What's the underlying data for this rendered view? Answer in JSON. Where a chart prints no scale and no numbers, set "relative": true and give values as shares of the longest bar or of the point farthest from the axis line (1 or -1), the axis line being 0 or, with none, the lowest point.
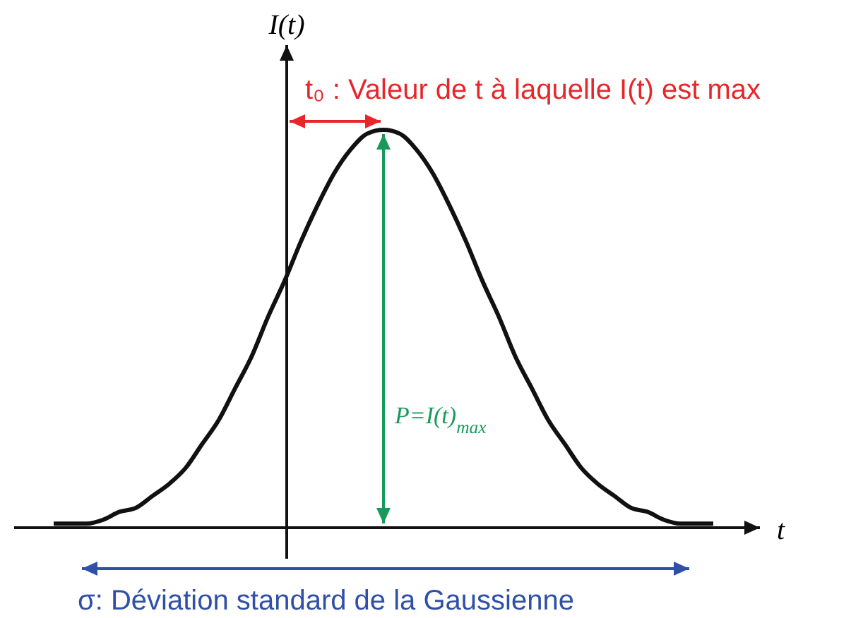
{
  "chart_data": {
    "type": "line",
    "relative": true,
    "xlabel": "t",
    "ylabel": "I(t)",
    "categories": [
      null,
      null,
      null,
      null,
      null,
      null,
      null,
      null,
      null,
      null,
      null,
      null,
      null,
      null,
      null,
      null,
      null,
      null,
      null,
      null,
      null,
      null,
      null,
      null,
      null,
      null,
      null,
      null,
      null,
      null,
      null,
      null,
      null,
      null,
      null,
      null,
      null,
      null,
      null,
      null,
      null
    ],
    "series": [
      {
        "color": "#111111",
        "values": [
          0.01,
          0.01,
          0.01,
          0.02,
          0.04,
          0.05,
          0.08,
          0.11,
          0.15,
          0.21,
          0.27,
          0.35,
          0.43,
          0.53,
          0.62,
          0.72,
          0.81,
          0.89,
          0.95,
          0.99,
          1,
          0.99,
          0.95,
          0.89,
          0.81,
          0.72,
          0.62,
          0.53,
          0.43,
          0.35,
          0.27,
          0.21,
          0.15,
          0.11,
          0.08,
          0.05,
          0.04,
          0.02,
          0.01,
          0.01,
          0.01
        ]
      }
    ],
    "marker": "none",
    "line_style": "solid",
    "annotations": [
      "t₀ : Valeur de t à laquelle I(t) est max",
      "P=I(t)$_{max}$",
      "σ: Déviation standard de la Gaussienne"
    ]
  }
}
